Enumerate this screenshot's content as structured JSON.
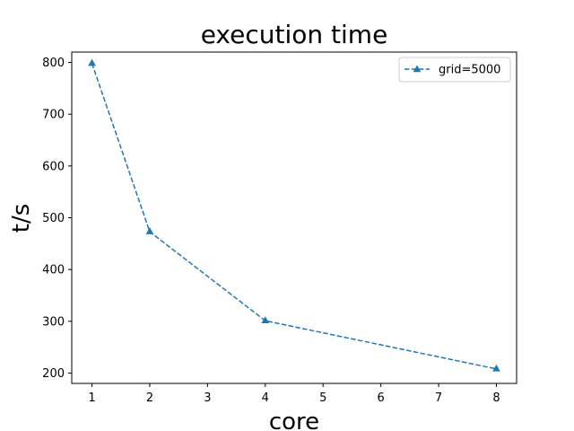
{
  "chart_data": {
    "type": "line",
    "title": "execution time",
    "xlabel": "core",
    "ylabel": "t/s",
    "x": [
      1,
      2,
      4,
      8
    ],
    "series": [
      {
        "name": "grid=5000",
        "values": [
          798,
          473,
          301,
          208
        ],
        "color": "#1f77b4",
        "line_style": "dashed",
        "marker": "triangle-up"
      }
    ],
    "xlim": [
      0.65,
      8.35
    ],
    "ylim": [
      180,
      820
    ],
    "xticks": [
      1,
      2,
      3,
      4,
      5,
      6,
      7,
      8
    ],
    "yticks": [
      200,
      300,
      400,
      500,
      600,
      700,
      800
    ],
    "grid": false,
    "legend_position": "top-right"
  }
}
